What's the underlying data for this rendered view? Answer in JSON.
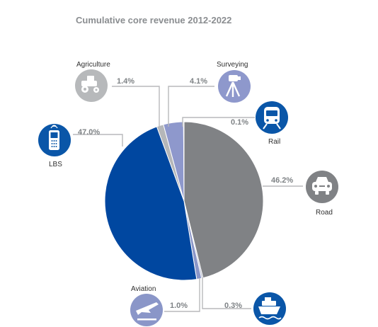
{
  "chart_data": {
    "type": "pie",
    "title": "Cumulative core revenue 2012-2022",
    "slices": [
      {
        "key": "road",
        "label": "Road",
        "value": 46.2,
        "value_label": "46.2%",
        "color": "#808285",
        "icon": "car-icon"
      },
      {
        "key": "maritime",
        "label": "",
        "value": 0.3,
        "value_label": "0.3%",
        "color": "#aeb3c8",
        "icon": "ship-icon"
      },
      {
        "key": "aviation",
        "label": "Aviation",
        "value": 1.0,
        "value_label": "1.0%",
        "color": "#8a96c8",
        "icon": "airplane-icon"
      },
      {
        "key": "lbs",
        "label": "LBS",
        "value": 47.0,
        "value_label": "47.0%",
        "color": "#0047a0",
        "icon": "mobile-phone-icon"
      },
      {
        "key": "agriculture",
        "label": "Agriculture",
        "value": 1.4,
        "value_label": "1.4%",
        "color": "#b5b7b9",
        "icon": "tractor-icon"
      },
      {
        "key": "surveying",
        "label": "Surveying",
        "value": 4.1,
        "value_label": "4.1%",
        "color": "#8e98cc",
        "icon": "theodolite-icon"
      },
      {
        "key": "rail",
        "label": "Rail",
        "value": 0.1,
        "value_label": "0.1%",
        "color": "#2a4c9a",
        "icon": "train-icon"
      }
    ],
    "legend": "none"
  },
  "icon_colors": {
    "road": "#808285",
    "maritime": "#0a56a8",
    "aviation": "#8a96c8",
    "lbs": "#0a56a8",
    "agriculture": "#b7b9bb",
    "surveying": "#8e98cc",
    "rail": "#0a56a8"
  }
}
